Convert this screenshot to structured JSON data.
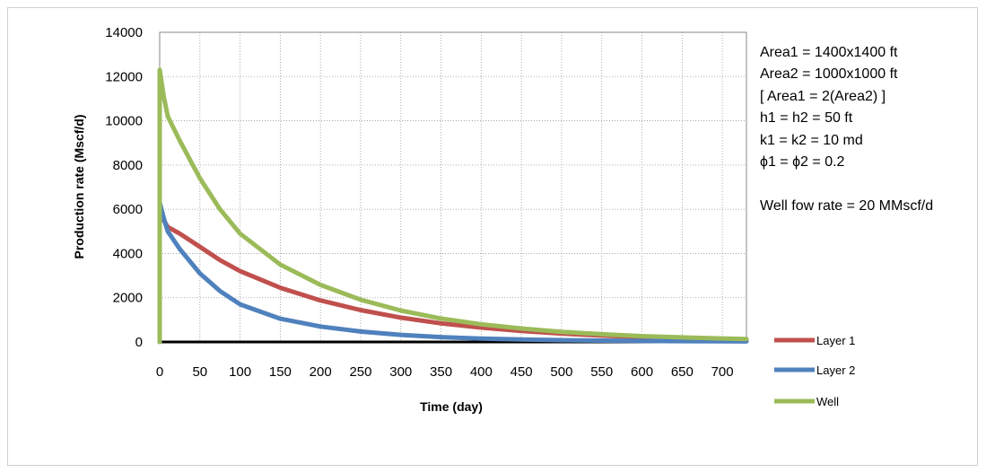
{
  "chart_data": {
    "type": "line",
    "title": "",
    "xlabel": "Time (day)",
    "ylabel": "Production rate (Mscf/d)",
    "xlim": [
      0,
      730
    ],
    "ylim": [
      0,
      14000
    ],
    "x_ticks": [
      0,
      50,
      100,
      150,
      200,
      250,
      300,
      350,
      400,
      450,
      500,
      550,
      600,
      650,
      700
    ],
    "y_ticks": [
      0,
      2000,
      4000,
      6000,
      8000,
      10000,
      12000,
      14000
    ],
    "grid": true,
    "legend_position": "right",
    "series": [
      {
        "name": "Layer 1",
        "color": "#c0504d",
        "x": [
          0,
          5,
          10,
          25,
          50,
          75,
          100,
          150,
          200,
          250,
          300,
          350,
          400,
          450,
          500,
          550,
          600,
          650,
          700,
          730
        ],
        "y": [
          6000,
          5500,
          5200,
          4900,
          4300,
          3700,
          3200,
          2450,
          1880,
          1440,
          1100,
          840,
          650,
          500,
          380,
          290,
          220,
          170,
          130,
          110
        ]
      },
      {
        "name": "Layer 2",
        "color": "#4f81bd",
        "x": [
          0,
          5,
          10,
          25,
          50,
          75,
          100,
          150,
          200,
          250,
          300,
          350,
          400,
          450,
          500,
          550,
          600,
          650,
          700,
          730
        ],
        "y": [
          6300,
          5600,
          5000,
          4200,
          3100,
          2300,
          1700,
          1050,
          700,
          470,
          320,
          220,
          150,
          110,
          80,
          60,
          45,
          35,
          30,
          25
        ]
      },
      {
        "name": "Well",
        "color": "#9bbb59",
        "x": [
          0,
          5,
          10,
          25,
          50,
          75,
          100,
          150,
          200,
          250,
          300,
          350,
          400,
          450,
          500,
          550,
          600,
          650,
          700,
          730
        ],
        "y": [
          12300,
          11100,
          10200,
          9100,
          7400,
          6000,
          4900,
          3500,
          2580,
          1910,
          1420,
          1060,
          800,
          610,
          460,
          350,
          265,
          205,
          160,
          135
        ]
      }
    ],
    "annotations": [
      "Area1 = 1400x1400  ft",
      "Area2  = 1000x1000  ft",
      "[ Area1 = 2(Area2)  ]",
      "h1 =  h2 = 50 ft",
      "k1  = k2 = 10 md",
      "ϕ1 = ϕ2 = 0.2",
      "",
      "Well fow rate = 20 MMscf/d"
    ]
  }
}
